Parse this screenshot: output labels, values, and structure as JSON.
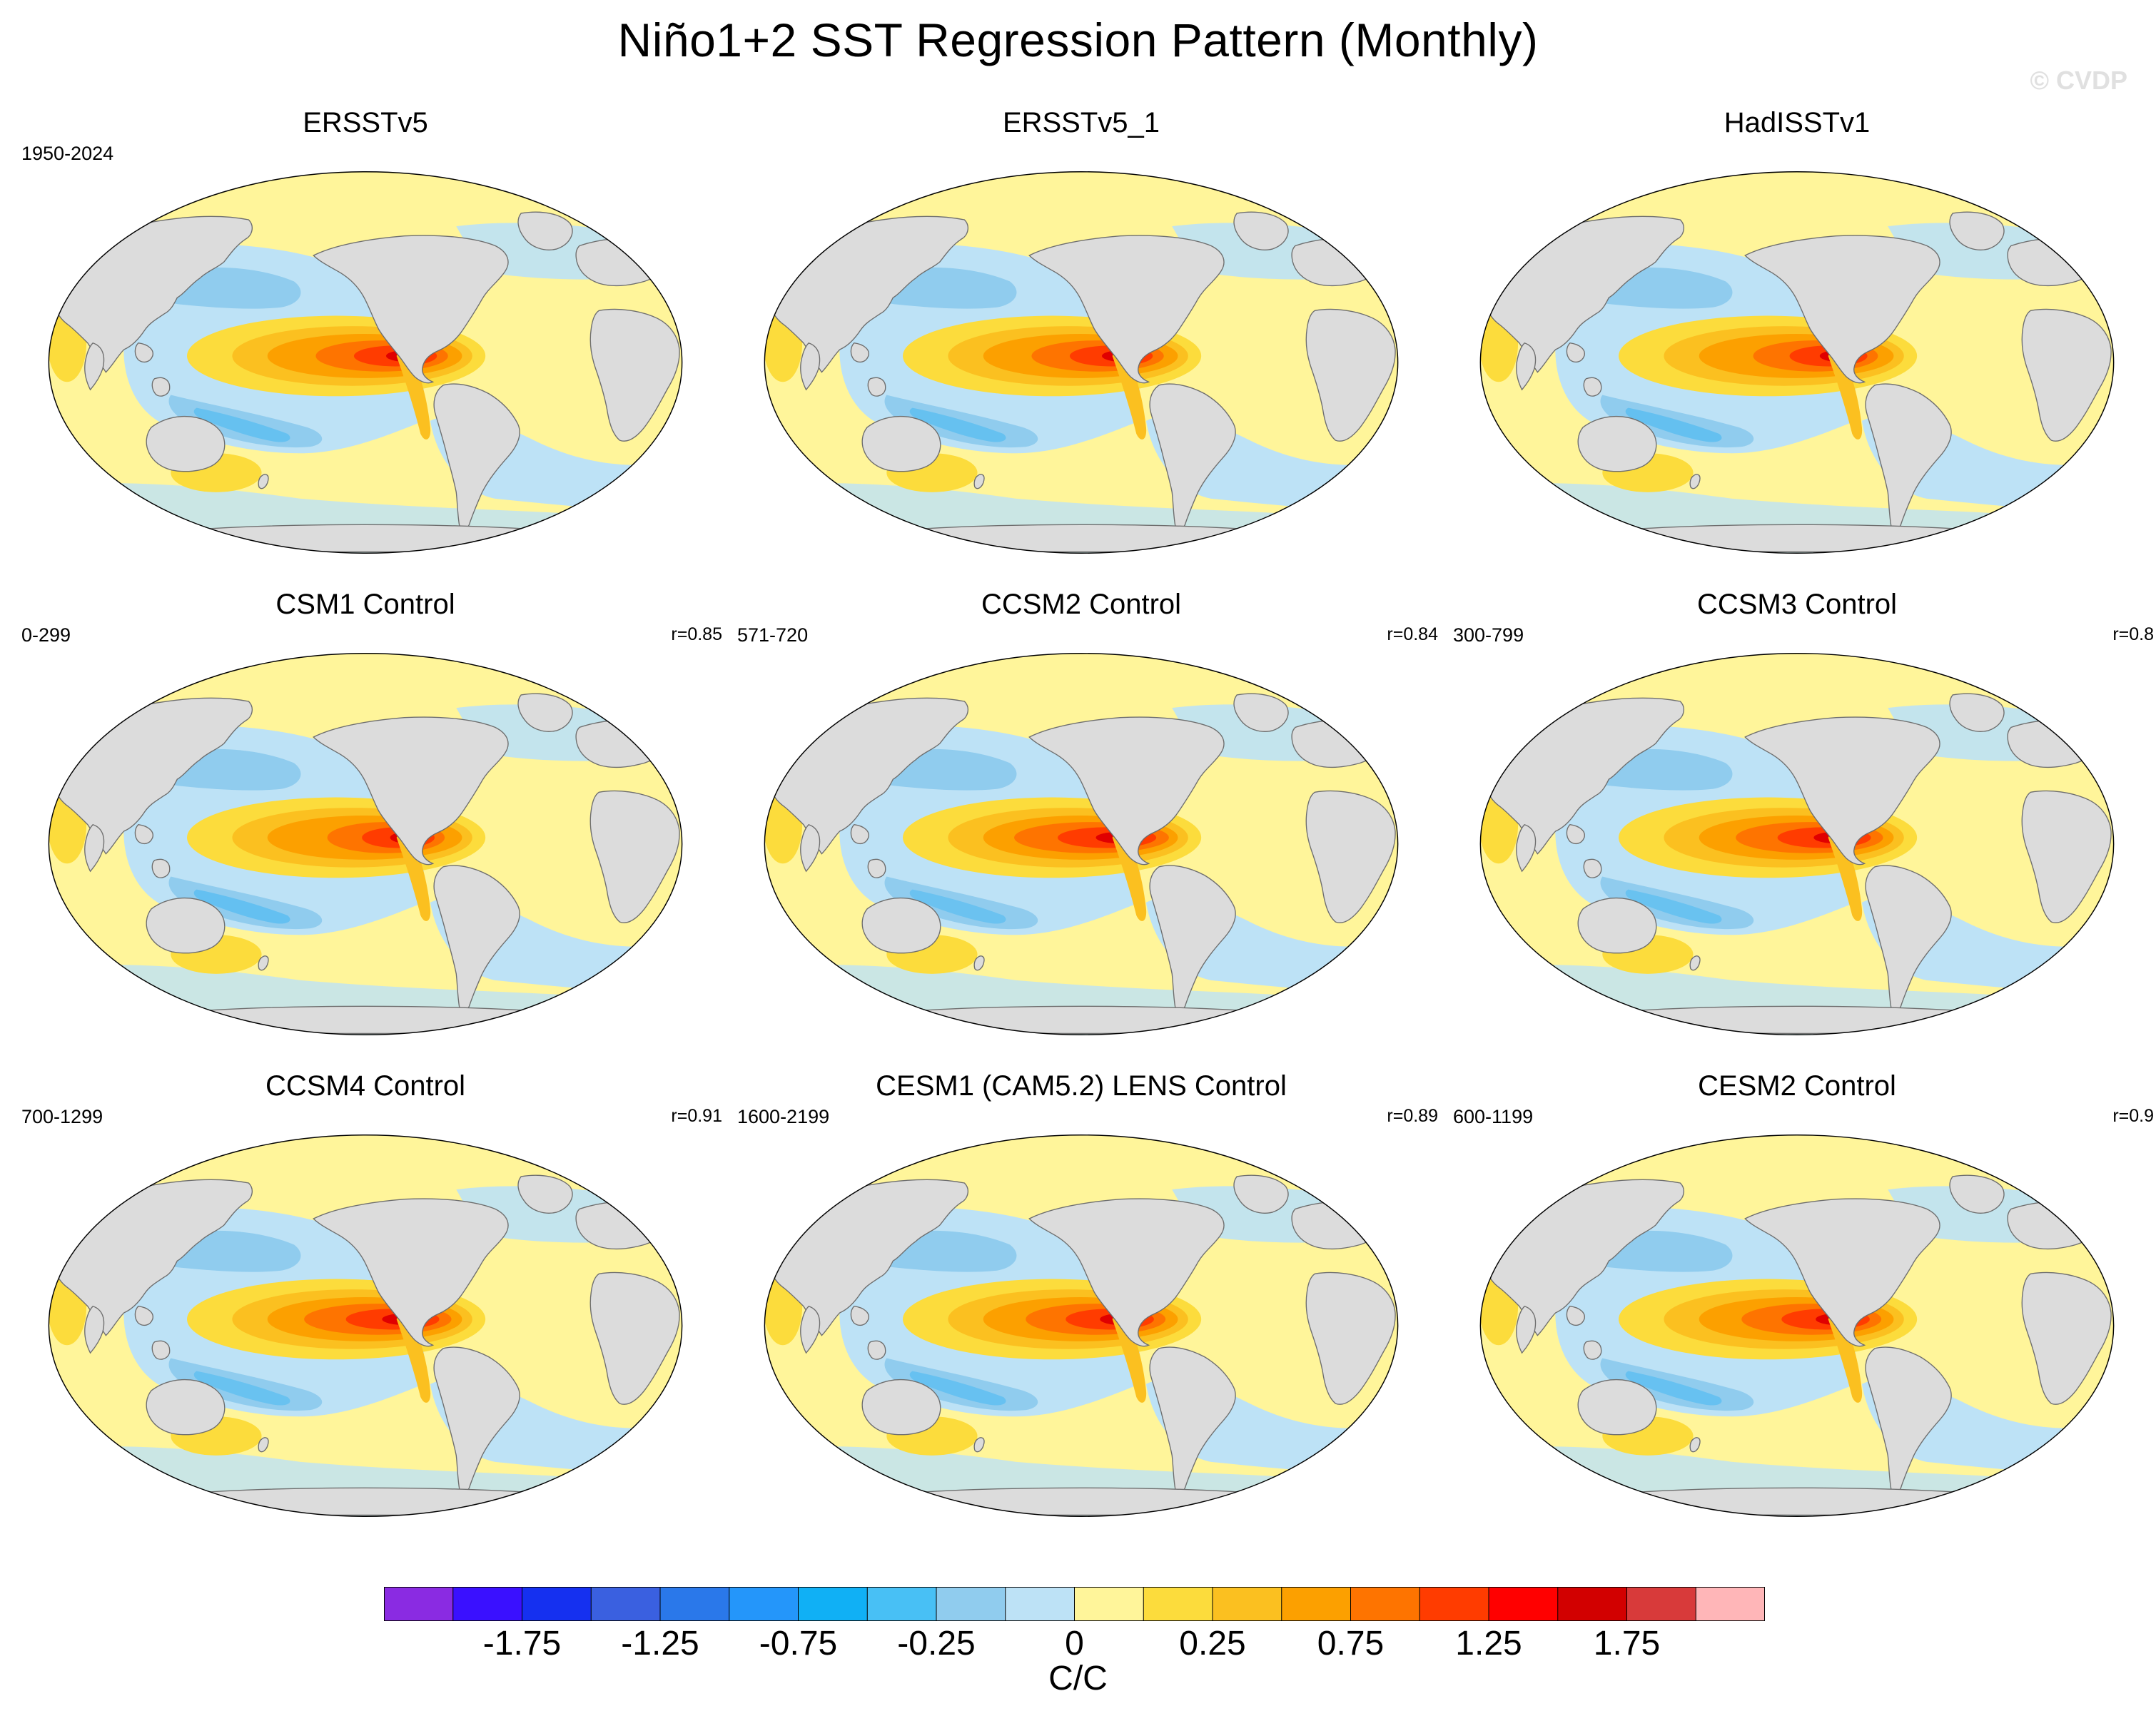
{
  "title": "Niño1+2 SST Regression Pattern (Monthly)",
  "watermark": "© CVDP",
  "units": "C/C",
  "colorbar": {
    "labels": [
      "-1.75",
      "-1.25",
      "-0.75",
      "-0.25",
      "0",
      "0.25",
      "0.75",
      "1.25",
      "1.75"
    ],
    "colors": [
      "#8a2be2",
      "#3a10ff",
      "#1530f0",
      "#3a60e0",
      "#2a78ea",
      "#2496fa",
      "#10b0f5",
      "#48c0f5",
      "#90ccee",
      "#bde2f6",
      "#fff59a",
      "#fcdc3c",
      "#fbc020",
      "#fca000",
      "#fe7400",
      "#ff3c00",
      "#ff0000",
      "#d20000",
      "#d83a3a",
      "#ffb6b8"
    ]
  },
  "map_colors": {
    "land": "#dcdcdc",
    "coast": "#6e6e6e",
    "strong_neg": "#48b8f2",
    "mid_neg": "#90ccee",
    "weak_neg": "#bde2f6",
    "weak_pos": "#fff59a",
    "pos1": "#fcdc3c",
    "pos2": "#fbc020",
    "pos3": "#fca000",
    "pos4": "#fe7400",
    "pos5": "#ff3c00",
    "pos6": "#e00000"
  },
  "panels": [
    {
      "title": "ERSSTv5",
      "period": "1950-2024",
      "corr": "",
      "intensity": 0.8
    },
    {
      "title": "ERSSTv5_1",
      "period": "",
      "corr": "",
      "intensity": 0.8
    },
    {
      "title": "HadISSTv1",
      "period": "",
      "corr": "",
      "intensity": 0.75
    },
    {
      "title": "CSM1 Control",
      "period": "0-299",
      "corr": "r=0.85",
      "intensity": 0.7
    },
    {
      "title": "CCSM2 Control",
      "period": "571-720",
      "corr": "r=0.84",
      "intensity": 0.95
    },
    {
      "title": "CCSM3 Control",
      "period": "300-799",
      "corr": "r=0.8",
      "intensity": 0.9
    },
    {
      "title": "CCSM4 Control",
      "period": "700-1299",
      "corr": "r=0.91",
      "intensity": 0.9
    },
    {
      "title": "CESM1 (CAM5.2) LENS Control",
      "period": "1600-2199",
      "corr": "r=0.89",
      "intensity": 0.85
    },
    {
      "title": "CESM2 Control",
      "period": "600-1199",
      "corr": "r=0.9",
      "intensity": 0.85
    }
  ]
}
